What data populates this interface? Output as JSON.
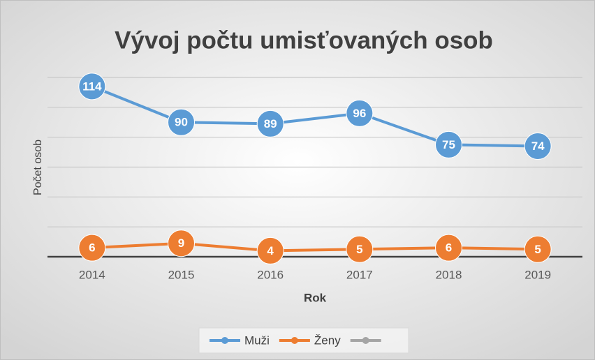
{
  "chart_data": {
    "type": "line",
    "title": "Vývoj počtu umisťovaných osob",
    "x_label": "Rok",
    "y_label": "Počet osob",
    "categories": [
      "2014",
      "2015",
      "2016",
      "2017",
      "2018",
      "2019"
    ],
    "series": [
      {
        "name": "Muži",
        "color": "#5b9bd5",
        "values": [
          114,
          90,
          89,
          96,
          75,
          74
        ]
      },
      {
        "name": "Ženy",
        "color": "#ed7d31",
        "values": [
          6,
          9,
          4,
          5,
          6,
          5
        ]
      },
      {
        "name": null,
        "color": "#a5a5a5",
        "values": [
          null,
          null,
          null,
          null,
          null,
          null
        ]
      }
    ],
    "ylim": [
      0,
      120
    ],
    "yticks": [
      0,
      20,
      40,
      60,
      80,
      100,
      120
    ],
    "grid": true,
    "legend": "bottom"
  }
}
